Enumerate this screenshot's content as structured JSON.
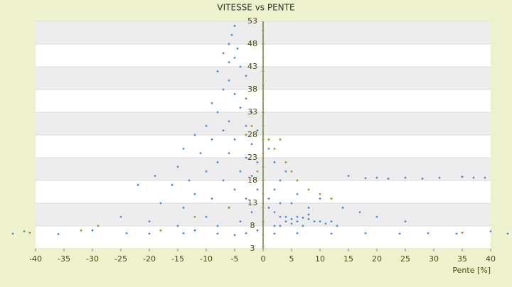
{
  "chart_data": {
    "type": "scatter",
    "title": "VITESSE vs PENTE",
    "xlabel": "Pente [%]",
    "xlim": [
      -40,
      40
    ],
    "xticks": [
      -40,
      -35,
      -30,
      -25,
      -20,
      -15,
      -10,
      -5,
      0,
      5,
      10,
      15,
      20,
      25,
      30,
      35,
      40
    ],
    "ylim": [
      3,
      53
    ],
    "yticks": [
      3,
      8,
      13,
      18,
      23,
      28,
      33,
      38,
      43,
      48,
      53
    ],
    "grid": true,
    "series": [
      {
        "color": "#3b80d0",
        "x": [
          -5,
          -5.5,
          -6,
          -4.5,
          -7,
          -6,
          -5,
          -4,
          -8,
          -3,
          -6,
          -7,
          -5,
          -3,
          -9,
          -8,
          -4,
          -2,
          -6,
          -10,
          -7,
          -3,
          -1,
          -12,
          -9,
          -5,
          -2,
          -14,
          -11,
          -6,
          -3,
          -1,
          -8,
          -15,
          -10,
          -4,
          -2,
          -19,
          -13,
          -7,
          -22,
          -16,
          -5,
          -1,
          -12,
          -9,
          -3,
          -18,
          -14,
          -6,
          -2,
          -25,
          -10,
          -4,
          -20,
          -15,
          -8,
          -1,
          -30,
          -12,
          -5,
          1,
          2,
          3,
          4,
          5,
          6,
          7,
          8,
          9,
          10,
          3,
          5,
          7,
          4,
          6,
          2,
          8,
          11,
          13,
          12,
          1,
          2,
          3,
          4,
          2,
          1,
          3,
          5,
          6,
          8,
          10,
          14,
          17,
          20,
          25,
          15,
          18,
          20,
          22,
          25,
          28,
          31,
          35,
          37,
          39,
          44,
          -44,
          -42,
          -36,
          -24,
          -20,
          -14,
          -8,
          -3,
          2,
          6,
          12,
          18,
          24,
          29,
          34,
          40,
          43
        ],
        "values": [
          52,
          50,
          48,
          47,
          46,
          44,
          45,
          43,
          42,
          41,
          40,
          38,
          37,
          36,
          35,
          33,
          34,
          33,
          31,
          30,
          29,
          30,
          29,
          28,
          27,
          27,
          26,
          25,
          24,
          24,
          23,
          22,
          22,
          21,
          20,
          20,
          19,
          19,
          18,
          18,
          17,
          17,
          16,
          16,
          15,
          14,
          14,
          13,
          12,
          12,
          11,
          10,
          10,
          9,
          9,
          8,
          8,
          7,
          7,
          7,
          6,
          12,
          11,
          10,
          10,
          9.5,
          10,
          9.8,
          9.5,
          9,
          9,
          8,
          8.5,
          8,
          9,
          9,
          8,
          10.5,
          8.5,
          8,
          9,
          14,
          16,
          18,
          20,
          22,
          25,
          13,
          13,
          15,
          12,
          14,
          12,
          11,
          10,
          9,
          19,
          18.5,
          18.6,
          18.4,
          18.6,
          18.4,
          18.6,
          18.8,
          18.6,
          18.6,
          18.6,
          6.3,
          6.8,
          6.2,
          6.4,
          6.3,
          6.4,
          6.3,
          6.4,
          6.3,
          6.4,
          6.3,
          6.4,
          6.3,
          6.4,
          6.3,
          6.8,
          6.3
        ]
      },
      {
        "color": "#8a8a1e",
        "x": [
          0,
          0,
          0,
          0,
          0,
          0,
          0,
          0,
          0,
          0,
          0,
          0,
          0,
          0,
          0,
          0,
          0,
          1,
          2,
          3,
          4,
          5,
          6,
          8,
          10,
          12,
          -2,
          -3,
          -1,
          -18,
          -29,
          -32,
          -41,
          35,
          -12,
          -6
        ],
        "values": [
          3.5,
          6,
          9,
          12,
          15,
          18,
          21,
          24,
          27,
          30,
          33,
          36,
          39,
          42,
          45,
          48,
          51,
          27,
          25,
          27,
          22,
          20,
          18,
          16,
          15,
          14,
          30,
          28,
          20,
          7,
          8,
          7,
          6.5,
          6.5,
          10,
          12
        ]
      }
    ]
  }
}
